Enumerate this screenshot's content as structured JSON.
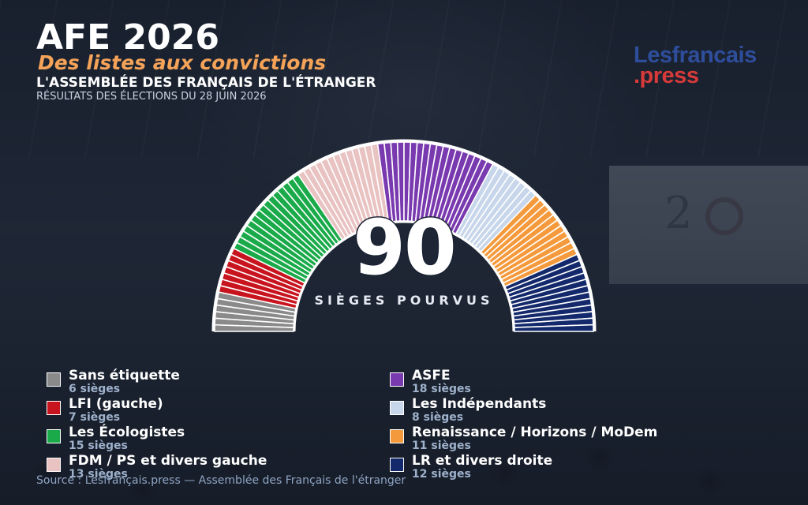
{
  "header": {
    "title": "AFE 2026",
    "subtitle": "Des listes aux convictions",
    "organization": "L'ASSEMBLÉE DES FRANÇAIS DE L'ÉTRANGER",
    "results_line": "RÉSULTATS DES ÉLECTIONS DU 28 JUIN 2026"
  },
  "logo": {
    "line1": "Lesfrancais",
    "line2": ".press",
    "color1": "#2e4e9c",
    "color2": "#d83a3a"
  },
  "chart_data": {
    "type": "parliament",
    "total_seats": 90,
    "total_label": "SIÈGES POURVUS",
    "series": [
      {
        "name": "Sans étiquette",
        "seats": 6,
        "seats_label": "6 sièges",
        "color": "#8a8a8a"
      },
      {
        "name": "LFI (gauche)",
        "seats": 7,
        "seats_label": "7 sièges",
        "color": "#c8141e"
      },
      {
        "name": "Les Écologistes",
        "seats": 15,
        "seats_label": "15 sièges",
        "color": "#1aaa4a"
      },
      {
        "name": "FDM / PS et divers gauche",
        "seats": 13,
        "seats_label": "13 sièges",
        "color": "#e9c2c2"
      },
      {
        "name": "ASFE",
        "seats": 18,
        "seats_label": "18 sièges",
        "color": "#7a3aaf"
      },
      {
        "name": "Les Indépendants",
        "seats": 8,
        "seats_label": "8 sièges",
        "color": "#c7d6ea"
      },
      {
        "name": "Renaissance / Horizons / MoDem",
        "seats": 11,
        "seats_label": "11 sièges",
        "color": "#f59a3c"
      },
      {
        "name": "LR et divers droite",
        "seats": 12,
        "seats_label": "12 sièges",
        "color": "#13296b"
      }
    ]
  },
  "legend": {
    "left": [
      0,
      1,
      2,
      3
    ],
    "right": [
      4,
      5,
      6,
      7
    ]
  },
  "source": "Source : Lesfrançais.press — Assemblée des Français de l'étranger"
}
